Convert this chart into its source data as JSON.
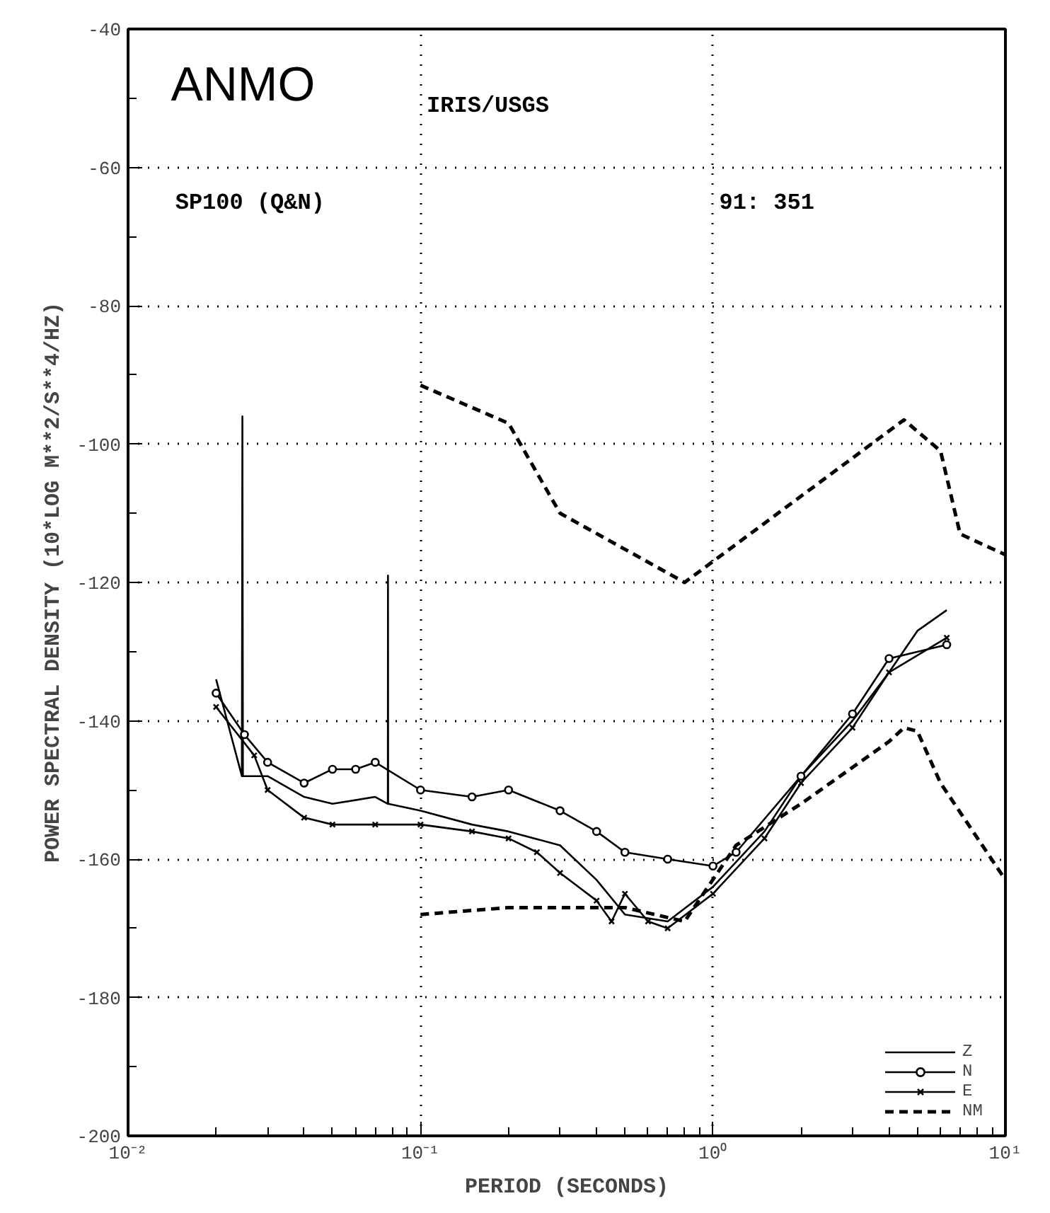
{
  "chart_data": {
    "type": "line",
    "title": "ANMO",
    "xlabel": "PERIOD (SECONDS)",
    "ylabel": "POWER SPECTRAL DENSITY (10*LOG M**2/S**4/HZ)",
    "annotations": [
      "IRIS/USGS",
      "SP100 (Q&N)",
      "91: 351"
    ],
    "log": "x",
    "xlim": [
      0.01,
      10
    ],
    "ylim": [
      -200,
      -40
    ],
    "xticks": [
      {
        "value": 0.01,
        "label": "10⁻²"
      },
      {
        "value": 0.1,
        "label": "10⁻¹"
      },
      {
        "value": 1,
        "label": "10⁰"
      },
      {
        "value": 10,
        "label": "10¹"
      }
    ],
    "yticks": [
      -200,
      -180,
      -160,
      -140,
      -120,
      -100,
      -80,
      -60,
      -40
    ],
    "grid": true,
    "legend": "bottom right",
    "series": [
      {
        "name": "Z",
        "color": "#000000",
        "marker": "none",
        "line_style": "solid",
        "x": [
          0.02,
          0.0245,
          0.0246,
          0.0247,
          0.03,
          0.04,
          0.05,
          0.07,
          0.0773,
          0.0774,
          0.0775,
          0.1,
          0.15,
          0.2,
          0.3,
          0.4,
          0.5,
          0.7,
          1.0,
          1.5,
          2,
          3,
          4,
          5,
          6.3
        ],
        "values": [
          -134,
          -148,
          -96,
          -148,
          -148,
          -151,
          -152,
          -151,
          -152,
          -119,
          -152,
          -153,
          -155,
          -156,
          -158,
          -163,
          -168,
          -169,
          -164,
          -156,
          -148,
          -140,
          -133,
          -127,
          -124
        ]
      },
      {
        "name": "N",
        "color": "#000000",
        "marker": "circle",
        "line_style": "solid",
        "x": [
          0.02,
          0.025,
          0.03,
          0.04,
          0.05,
          0.06,
          0.07,
          0.1,
          0.15,
          0.2,
          0.3,
          0.4,
          0.5,
          0.7,
          1.0,
          1.2,
          2,
          3,
          4,
          6.3
        ],
        "values": [
          -136,
          -142,
          -146,
          -149,
          -147,
          -147,
          -146,
          -150,
          -151,
          -150,
          -153,
          -156,
          -159,
          -160,
          -161,
          -159,
          -148,
          -139,
          -131,
          -129
        ]
      },
      {
        "name": "E",
        "color": "#000000",
        "marker": "cross",
        "line_style": "solid",
        "x": [
          0.02,
          0.027,
          0.03,
          0.04,
          0.05,
          0.07,
          0.1,
          0.15,
          0.2,
          0.25,
          0.3,
          0.4,
          0.45,
          0.5,
          0.6,
          0.7,
          1.0,
          1.5,
          2,
          3,
          4,
          6.3
        ],
        "values": [
          -138,
          -145,
          -150,
          -154,
          -155,
          -155,
          -155,
          -156,
          -157,
          -159,
          -162,
          -166,
          -169,
          -165,
          -169,
          -170,
          -165,
          -157,
          -149,
          -141,
          -133,
          -128
        ]
      },
      {
        "name": "NM",
        "color": "#000000",
        "marker": "none",
        "line_style": "dashed",
        "x": [
          0.1,
          0.2,
          0.3,
          0.8,
          4.5,
          6,
          7,
          10,
          null,
          0.1,
          0.2,
          0.5,
          0.8,
          1.2,
          2,
          4,
          4.5,
          5,
          6,
          10
        ],
        "values": [
          -91.5,
          -97,
          -110,
          -120,
          -96.5,
          -101,
          -113,
          -116,
          null,
          -168,
          -167,
          -167,
          -169,
          -158,
          -152,
          -143,
          -141,
          -141.5,
          -149,
          -163
        ]
      }
    ]
  }
}
